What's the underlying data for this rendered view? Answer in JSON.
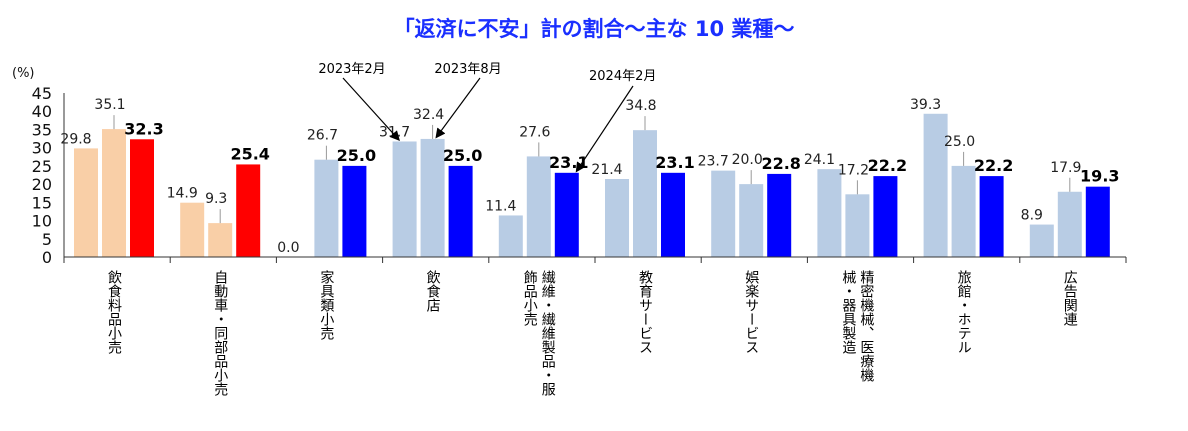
{
  "chart_data": {
    "type": "bar",
    "title": "「返済に不安」計の割合～主な 10 業種～",
    "ylabel": "(%)",
    "ylim": [
      0,
      45
    ],
    "yticks": [
      "0",
      "5",
      "10",
      "15",
      "20",
      "25",
      "30",
      "35",
      "40",
      "45"
    ],
    "series": [
      {
        "name": "2023年2月",
        "values": [
          29.8,
          14.9,
          0.0,
          31.7,
          11.4,
          21.4,
          23.7,
          24.1,
          39.3,
          8.9
        ]
      },
      {
        "name": "2023年8月",
        "values": [
          35.1,
          9.3,
          26.7,
          32.4,
          27.6,
          34.8,
          20.0,
          17.2,
          25.0,
          17.9
        ]
      },
      {
        "name": "2024年2月",
        "values": [
          32.3,
          25.4,
          25.0,
          25.0,
          23.1,
          23.1,
          22.8,
          22.2,
          22.2,
          19.3
        ]
      }
    ],
    "value_labels": [
      [
        "29.8",
        "35.1",
        "32.3"
      ],
      [
        "14.9",
        "9.3",
        "25.4"
      ],
      [
        "0.0",
        "26.7",
        "25.0"
      ],
      [
        "31.7",
        "32.4",
        "25.0"
      ],
      [
        "11.4",
        "27.6",
        "23.1"
      ],
      [
        "21.4",
        "34.8",
        "23.1"
      ],
      [
        "23.7",
        "20.0",
        "22.8"
      ],
      [
        "24.1",
        "17.2",
        "22.2"
      ],
      [
        "39.3",
        "25.0",
        "22.2"
      ],
      [
        "8.9",
        "17.9",
        "19.3"
      ]
    ],
    "categories": [
      {
        "lines": [
          "飲食料品小売"
        ]
      },
      {
        "lines": [
          "自動車・同部品小売"
        ]
      },
      {
        "lines": [
          "家具類小売"
        ]
      },
      {
        "lines": [
          "飲食店"
        ]
      },
      {
        "lines": [
          "繊維・繊維製品・服",
          "飾品小売"
        ]
      },
      {
        "lines": [
          "教育サービス"
        ]
      },
      {
        "lines": [
          "娯楽サービス"
        ]
      },
      {
        "lines": [
          "精密機械、医療機",
          "械・器具製造"
        ]
      },
      {
        "lines": [
          "旅館・ホテル"
        ]
      },
      {
        "lines": [
          "広告関連"
        ]
      }
    ],
    "annotations": [
      {
        "text": "2023年2月",
        "target_category": 3,
        "target_series": 0
      },
      {
        "text": "2023年8月",
        "target_category": 3,
        "target_series": 1
      },
      {
        "text": "2024年2月",
        "target_category": 4,
        "target_series": 2
      }
    ],
    "colors": {
      "food_retail": [
        "#f9cfa7",
        "#f9cfa7",
        "#ff0000"
      ],
      "auto_retail": [
        "#f9cfa7",
        "#f9cfa7",
        "#ff0000"
      ],
      "default": [
        "#b8cce4",
        "#b8cce4",
        "#0000ff"
      ]
    }
  }
}
